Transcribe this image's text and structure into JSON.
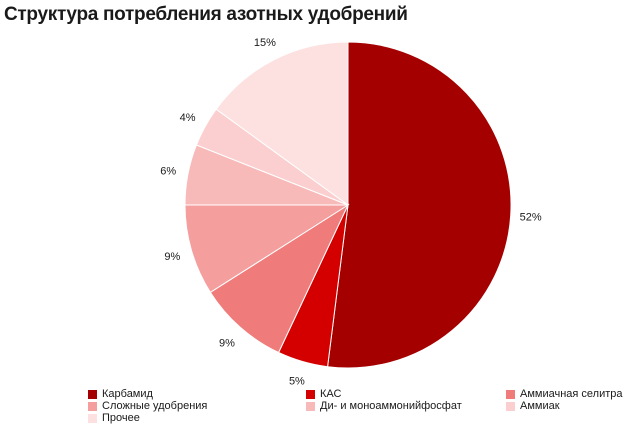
{
  "chart_data": {
    "type": "pie",
    "title": "Структура потребления азотных удобрений",
    "slices": [
      {
        "name": "Карбамид",
        "value": 52,
        "label": "52%",
        "color": "#a50000"
      },
      {
        "name": "КАС",
        "value": 5,
        "label": "5%",
        "color": "#d40000"
      },
      {
        "name": "Аммиачная селитра",
        "value": 9,
        "label": "9%",
        "color": "#f07b7b"
      },
      {
        "name": "Сложные удобрения",
        "value": 9,
        "label": "9%",
        "color": "#f49e9e"
      },
      {
        "name": "Ди- и моноаммонийфосфат",
        "value": 6,
        "label": "6%",
        "color": "#f8b9b9"
      },
      {
        "name": "Аммиак",
        "value": 4,
        "label": "4%",
        "color": "#fbcfcf"
      },
      {
        "name": "Прочее",
        "value": 15,
        "label": "15%",
        "color": "#fde1e1"
      }
    ]
  }
}
